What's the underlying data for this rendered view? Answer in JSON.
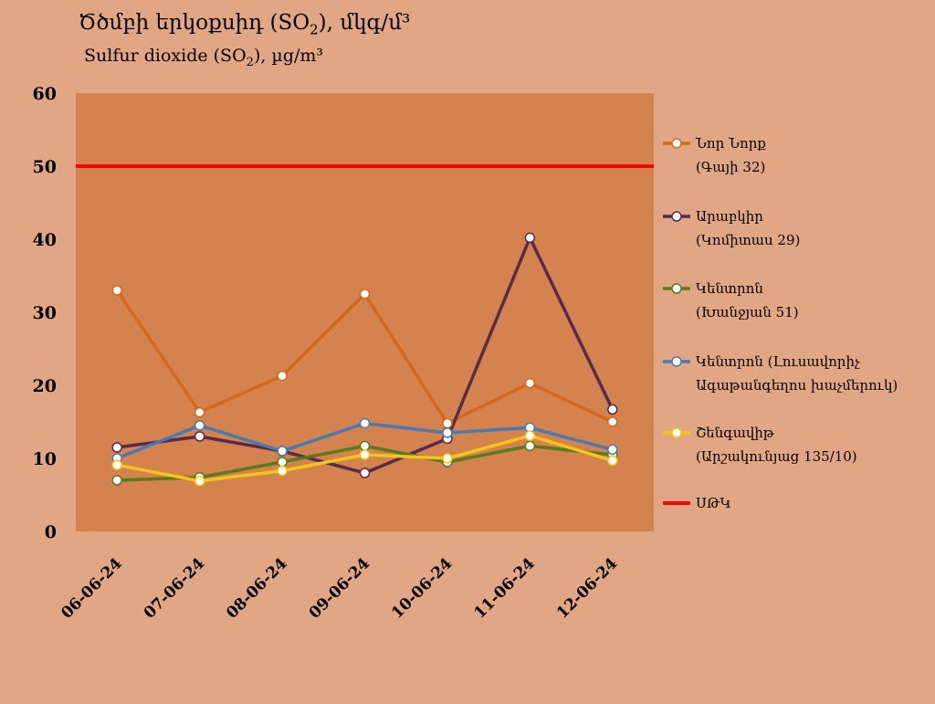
{
  "title": {
    "main": "Ծծմբի երկօքսիդ (SO",
    "sub": "2",
    "end": "), մկգ/մ³"
  },
  "subtitle": {
    "main": "Sulfur dioxide (SO",
    "sub": "2",
    "end": "), µg/m³"
  },
  "chart_data": {
    "type": "line",
    "categories": [
      "06-06-24",
      "07-06-24",
      "08-06-24",
      "09-06-24",
      "10-06-24",
      "11-06-24",
      "12-06-24"
    ],
    "ylim": [
      0,
      60
    ],
    "yticks": [
      0,
      10,
      20,
      30,
      40,
      50,
      60
    ],
    "grid": false,
    "legend_position": "right",
    "plot_background": "#d4824e",
    "series": [
      {
        "name": "Նոր Նորք",
        "name2": "(Գայի 32)",
        "color": "#d2691e",
        "values": [
          33,
          16.3,
          21.3,
          32.5,
          14.8,
          20.3,
          15
        ]
      },
      {
        "name": "Արաբկիր",
        "name2": "(Կոմիտաս 29)",
        "color": "#5a2a4a",
        "values": [
          11.5,
          13,
          11,
          8,
          12.7,
          40.2,
          16.7
        ]
      },
      {
        "name": "Կենտրոն",
        "name2": "(Խանջյան 51)",
        "color": "#5a7a1e",
        "values": [
          7,
          7.4,
          9.5,
          11.7,
          9.5,
          11.7,
          10.5
        ]
      },
      {
        "name": "Կենտրոն (Լուսավորիչ",
        "name2": "Ագաթանգեղոս խաչմերուկ)",
        "color": "#4a7ab0",
        "values": [
          10,
          14.5,
          11,
          14.8,
          13.5,
          14.2,
          11.2
        ]
      },
      {
        "name": "Շենգավիթ",
        "name2": "(Արշակունյաց 135/10)",
        "color": "#f5c518",
        "values": [
          9.1,
          6.9,
          8.3,
          10.5,
          10,
          13.1,
          9.7
        ]
      }
    ],
    "limit_line": {
      "name": "ՍԹԿ",
      "value": 50,
      "color": "#ff0000"
    }
  }
}
